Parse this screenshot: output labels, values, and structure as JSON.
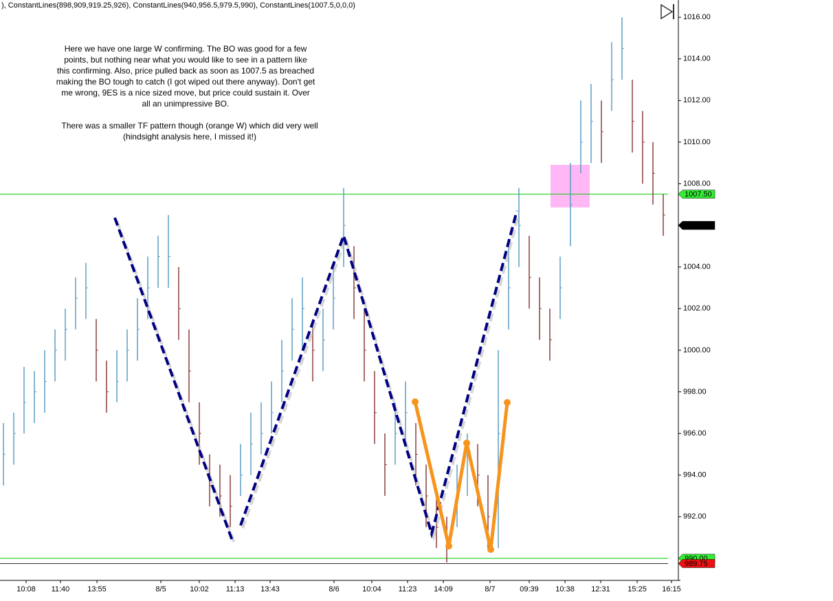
{
  "chart_data": {
    "type": "ohlc",
    "header": "), ConstantLines(898,909,919.25,926), ConstantLines(940,956.5,979.5,990), ConstantLines(1007.5,0,0,0)",
    "annotation": [
      "Here we have one large W confirming. The BO was good for a few",
      "points, but nothing near what you would like to see in a pattern like",
      "this confirming. Also, price pulled back as soon as 1007.5 as breached",
      "making the BO tough to catch (I got wiped out there anyway). Don't get",
      "me wrong, 9ES is a nice sized move, but price could sustain it. Over",
      "all an unimpressive BO.",
      "There was a smaller TF pattern though (orange W) which did very well",
      "(hindsight analysis here, I missed it!)"
    ],
    "x": [
      0,
      1,
      2,
      3,
      4,
      5,
      6,
      7,
      8,
      9,
      10,
      11,
      12,
      13,
      14,
      15,
      16,
      17,
      18,
      19,
      20,
      21,
      22,
      23,
      24,
      25,
      26,
      27,
      28,
      29,
      30,
      31,
      32,
      33,
      34,
      35,
      36,
      37,
      38,
      39,
      40,
      41,
      42,
      43,
      44,
      45,
      46,
      47,
      48,
      49,
      50,
      51,
      52,
      53,
      54,
      55,
      56,
      57,
      58,
      59,
      60,
      61,
      62,
      63,
      64
    ],
    "high": [
      996.5,
      997,
      999.2,
      999,
      1000,
      1001,
      1002,
      1003.5,
      1004.2,
      1001.5,
      999.5,
      1000,
      1001,
      1002.5,
      1004.5,
      1005.5,
      1006.5,
      1004,
      1001,
      997.5,
      995,
      994.5,
      994,
      995.5,
      997,
      997.5,
      998.5,
      1000.5,
      1002.5,
      1003.5,
      1001.5,
      1002,
      1004,
      1007.8,
      1005,
      1002,
      999,
      996,
      997.5,
      998.5,
      996.5,
      994.5,
      993,
      992,
      994.5,
      996,
      995.5,
      994,
      1000,
      1005,
      1007.8,
      1005.5,
      1003.5,
      1002,
      1004.5,
      1009,
      1012,
      1012.8,
      1012,
      1014.8,
      1016,
      1013,
      1011.5,
      1010,
      1007.5
    ],
    "low": [
      993.5,
      994.5,
      996,
      996.5,
      997,
      998.5,
      999.5,
      1001,
      1001.5,
      998.5,
      997,
      997.5,
      998.5,
      999.5,
      1001.5,
      1003,
      1003,
      1000.5,
      997.5,
      994.5,
      992.5,
      992,
      991.5,
      993,
      994,
      995,
      996,
      997.5,
      999.5,
      1000,
      998.5,
      999,
      1001,
      1004,
      1001.5,
      998.5,
      995.5,
      993,
      994.5,
      995.5,
      993.5,
      991.5,
      990.5,
      989.8,
      991.5,
      993,
      992.5,
      990.5,
      990.5,
      1001,
      1004,
      1002,
      1000.5,
      999.5,
      1001.5,
      1005,
      1008.5,
      1009,
      1009,
      1011.5,
      1013,
      1009.5,
      1008,
      1007,
      1005.5
    ],
    "close": [
      995,
      996,
      997.5,
      998,
      998.5,
      1000,
      1001,
      1002.5,
      1003,
      1000,
      998,
      998.5,
      1000,
      1001,
      1003,
      1004.5,
      1004.5,
      1002,
      999,
      996,
      993.5,
      993,
      992.5,
      994,
      995.5,
      996,
      997,
      999,
      1001,
      1002,
      1000,
      1000.5,
      1002.5,
      1006,
      1003,
      1000,
      997,
      994.5,
      996,
      997,
      995,
      993,
      991.5,
      990.8,
      993,
      995,
      994,
      992,
      996,
      1003,
      1006,
      1003.5,
      1002,
      1000.5,
      1003,
      1007,
      1010,
      1011,
      1010.5,
      1013,
      1014.5,
      1011,
      1010,
      1008.5,
      1006.5
    ],
    "up_color": "#5b9ec4",
    "down_color": "#8b3c3c",
    "xlim": [
      -0.333,
      65.333
    ],
    "ylim": [
      988.94,
      1016.83
    ],
    "xticks": [
      {
        "value": 2.2,
        "label": "10:08"
      },
      {
        "value": 5.53,
        "label": "11:40"
      },
      {
        "value": 9.07,
        "label": "13:55"
      },
      {
        "value": 15.27,
        "label": "8/5"
      },
      {
        "value": 19,
        "label": "10:02"
      },
      {
        "value": 22.47,
        "label": "11:13"
      },
      {
        "value": 25.87,
        "label": "13:43"
      },
      {
        "value": 32.07,
        "label": "8/6"
      },
      {
        "value": 35.73,
        "label": "10:04"
      },
      {
        "value": 39.2,
        "label": "11:23"
      },
      {
        "value": 42.67,
        "label": "14:09"
      },
      {
        "value": 47.2,
        "label": "8/7"
      },
      {
        "value": 51,
        "label": "09:39"
      },
      {
        "value": 54.47,
        "label": "10:38"
      },
      {
        "value": 57.93,
        "label": "12:31"
      },
      {
        "value": 61.47,
        "label": "15:25"
      },
      {
        "value": 64.8,
        "label": "16:15"
      }
    ],
    "yticks": [
      {
        "value": 992,
        "label": "992.00"
      },
      {
        "value": 994,
        "label": "994.00"
      },
      {
        "value": 996,
        "label": "996.00"
      },
      {
        "value": 998,
        "label": "998.00"
      },
      {
        "value": 1000,
        "label": "1000.00"
      },
      {
        "value": 1002,
        "label": "1002.00"
      },
      {
        "value": 1004,
        "label": "1004.00"
      },
      {
        "value": 1006,
        "label": "1006.00"
      },
      {
        "value": 1008,
        "label": "1008.00"
      },
      {
        "value": 1010,
        "label": "1010.00"
      },
      {
        "value": 1012,
        "label": "1012.00"
      },
      {
        "value": 1014,
        "label": "1014.00"
      },
      {
        "value": 1016,
        "label": "1016.00"
      }
    ],
    "hlines": [
      {
        "value": 1007.5,
        "color": "#00cc00"
      },
      {
        "value": 990,
        "color": "#00cc00"
      },
      {
        "value": 989.75,
        "color": "#333333"
      }
    ],
    "price_markers": [
      {
        "value": 1007.5,
        "label": "1007.50",
        "color": "#33ee33",
        "text_color": "#000000"
      },
      {
        "value": 1006,
        "label": "1006.00",
        "color": "#000000",
        "text_color": "#ffffff"
      },
      {
        "value": 990,
        "label": "990.00",
        "color": "#33ee33",
        "text_color": "#000000"
      },
      {
        "value": 989.75,
        "label": "989.75",
        "color": "#ee1111",
        "text_color": "#ffffff"
      }
    ]
  }
}
